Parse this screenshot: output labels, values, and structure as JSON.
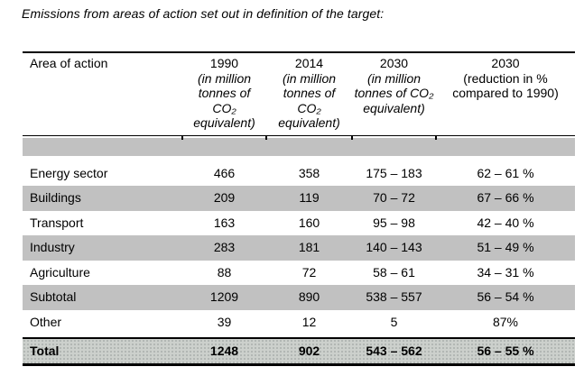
{
  "title": "Emissions from areas of action set out in definition of the target:",
  "colors": {
    "row_shade": "#c1c1c1",
    "total_row_bg": "#ccd0cc",
    "border": "#000000",
    "text": "#000000"
  },
  "table": {
    "header": {
      "area_label": "Area of action",
      "col_1990": {
        "year": "1990",
        "line1": "(in million",
        "line2": "tonnes of",
        "line3": "CO₂",
        "line4": "equivalent)"
      },
      "col_2014": {
        "year": "2014",
        "line1": "(in million",
        "line2": "tonnes of",
        "line3": "CO₂",
        "line4": "equivalent)"
      },
      "col_2030_abs": {
        "year": "2030",
        "line1": "(in million",
        "line2": "tonnes of CO₂",
        "line3": "equivalent)"
      },
      "col_2030_rel": {
        "year": "2030",
        "line1": "(reduction in %",
        "line2": "compared to 1990)"
      }
    },
    "rows": [
      {
        "area": "Energy sector",
        "v1990": "466",
        "v2014": "358",
        "v2030": "175 – 183",
        "reduction": "62 – 61 %"
      },
      {
        "area": "Buildings",
        "v1990": "209",
        "v2014": "119",
        "v2030": "70 – 72",
        "reduction": "67 – 66 %"
      },
      {
        "area": "Transport",
        "v1990": "163",
        "v2014": "160",
        "v2030": "95 – 98",
        "reduction": "42 – 40 %"
      },
      {
        "area": "Industry",
        "v1990": "283",
        "v2014": "181",
        "v2030": "140 – 143",
        "reduction": "51 – 49 %"
      },
      {
        "area": "Agriculture",
        "v1990": "88",
        "v2014": "72",
        "v2030": "58 – 61",
        "reduction": "34 – 31 %"
      },
      {
        "area": "Subtotal",
        "v1990": "1209",
        "v2014": "890",
        "v2030": "538 – 557",
        "reduction": "56 – 54 %"
      },
      {
        "area": "Other",
        "v1990": "39",
        "v2014": "12",
        "v2030": "5",
        "reduction": "87%"
      }
    ],
    "total": {
      "area": "Total",
      "v1990": "1248",
      "v2014": "902",
      "v2030": "543 – 562",
      "reduction": "56 – 55 %"
    }
  },
  "chart_data": {
    "type": "table",
    "title": "Emissions from areas of action set out in definition of the target:",
    "columns": [
      "Area of action",
      "1990 (in million tonnes of CO₂ equivalent)",
      "2014 (in million tonnes of CO₂ equivalent)",
      "2030 (in million tonnes of CO₂ equivalent)",
      "2030 (reduction in % compared to 1990)"
    ],
    "rows": [
      [
        "Energy sector",
        "466",
        "358",
        "175 – 183",
        "62 – 61 %"
      ],
      [
        "Buildings",
        "209",
        "119",
        "70 – 72",
        "67 – 66 %"
      ],
      [
        "Transport",
        "163",
        "160",
        "95 – 98",
        "42 – 40 %"
      ],
      [
        "Industry",
        "283",
        "181",
        "140 – 143",
        "51 – 49 %"
      ],
      [
        "Agriculture",
        "88",
        "72",
        "58 – 61",
        "34 – 31 %"
      ],
      [
        "Subtotal",
        "1209",
        "890",
        "538 – 557",
        "56 – 54 %"
      ],
      [
        "Other",
        "39",
        "12",
        "5",
        "87%"
      ],
      [
        "Total",
        "1248",
        "902",
        "543 – 562",
        "56 – 55 %"
      ]
    ]
  }
}
